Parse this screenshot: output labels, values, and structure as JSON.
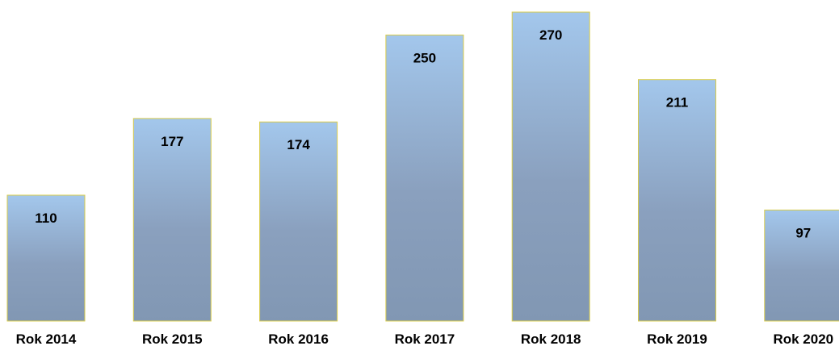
{
  "chart_data": {
    "type": "bar",
    "categories": [
      "Rok 2014",
      "Rok 2015",
      "Rok 2016",
      "Rok 2017",
      "Rok 2018",
      "Rok 2019",
      "Rok 2020"
    ],
    "values": [
      110,
      177,
      174,
      250,
      270,
      211,
      97
    ],
    "title": "",
    "xlabel": "",
    "ylabel": "",
    "ylim": [
      0,
      270
    ],
    "grid": false,
    "legend": "none",
    "data_labels": true
  },
  "colors": {
    "bar_top": "#a3c7ec",
    "bar_mid": "#8aa0be",
    "bar_bottom": "#8197b3",
    "bar_border": "#d9cc4a"
  }
}
